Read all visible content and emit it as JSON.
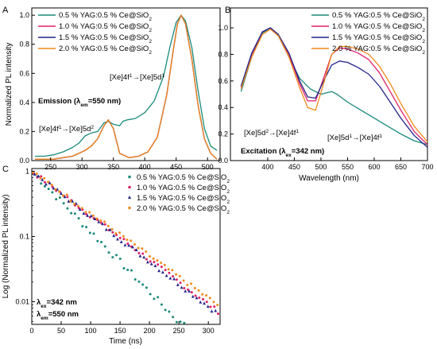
{
  "chart_data": [
    {
      "panel": "A",
      "type": "line",
      "xlim": [
        220,
        520
      ],
      "ylim": [
        0,
        1.05
      ],
      "xlabel": "",
      "ylabel": "Normalized PL intensity",
      "xticks": [
        250,
        300,
        350,
        400,
        450,
        500
      ],
      "yticks": [
        0.0,
        0.2,
        0.4,
        0.6,
        0.8,
        1.0
      ],
      "legend_position": "top-left",
      "annotations": [
        {
          "id": "ce5d1",
          "text": "[Xe]4f¹→[Xe]5d¹"
        },
        {
          "id": "emission",
          "text": "Emission (λ_em=550 nm)"
        },
        {
          "id": "ce5d2",
          "text": "[Xe]4f¹→[Xe]5d²"
        }
      ],
      "series": [
        {
          "name": "0.5 % YAG:0.5 % Ce@SiO₂",
          "color": "#1a8a7a",
          "x": [
            225,
            240,
            255,
            270,
            285,
            295,
            305,
            315,
            325,
            335,
            342,
            350,
            360,
            365,
            372,
            385,
            400,
            415,
            430,
            440,
            450,
            458,
            465,
            475,
            485,
            495,
            505,
            515
          ],
          "y": [
            0.03,
            0.03,
            0.04,
            0.06,
            0.09,
            0.12,
            0.17,
            0.19,
            0.2,
            0.26,
            0.27,
            0.25,
            0.24,
            0.27,
            0.28,
            0.29,
            0.33,
            0.41,
            0.58,
            0.78,
            0.95,
            1.0,
            0.96,
            0.78,
            0.48,
            0.22,
            0.1,
            0.07
          ]
        },
        {
          "name": "1.0 % YAG:0.5 % Ce@SiO₂",
          "color": "#e0206a",
          "x": [
            225,
            240,
            255,
            270,
            285,
            295,
            305,
            315,
            325,
            335,
            342,
            350,
            360,
            375,
            390,
            405,
            420,
            435,
            445,
            452,
            458,
            465,
            475,
            485,
            495,
            505,
            515
          ],
          "y": [
            0.01,
            0.01,
            0.01,
            0.02,
            0.03,
            0.05,
            0.07,
            0.1,
            0.15,
            0.24,
            0.28,
            0.22,
            0.05,
            0.02,
            0.03,
            0.06,
            0.16,
            0.45,
            0.75,
            0.94,
            1.0,
            0.94,
            0.7,
            0.38,
            0.15,
            0.05,
            0.01
          ]
        },
        {
          "name": "1.5 % YAG:0.5 % Ce@SiO₂",
          "color": "#24248a",
          "x": [
            225,
            240,
            255,
            270,
            285,
            295,
            305,
            315,
            325,
            335,
            342,
            350,
            360,
            375,
            390,
            405,
            420,
            435,
            445,
            452,
            458,
            465,
            475,
            485,
            495,
            505,
            515
          ],
          "y": [
            0.01,
            0.01,
            0.01,
            0.02,
            0.03,
            0.05,
            0.07,
            0.1,
            0.15,
            0.24,
            0.28,
            0.22,
            0.05,
            0.02,
            0.03,
            0.06,
            0.16,
            0.45,
            0.75,
            0.94,
            1.0,
            0.94,
            0.7,
            0.38,
            0.15,
            0.05,
            0.01
          ]
        },
        {
          "name": "2.0 % YAG:0.5 % Ce@SiO₂",
          "color": "#f08a1c",
          "x": [
            225,
            240,
            255,
            270,
            285,
            295,
            305,
            315,
            325,
            335,
            342,
            350,
            360,
            375,
            390,
            405,
            420,
            435,
            445,
            452,
            458,
            465,
            475,
            485,
            495,
            505,
            515
          ],
          "y": [
            0.01,
            0.01,
            0.01,
            0.02,
            0.03,
            0.05,
            0.07,
            0.1,
            0.15,
            0.24,
            0.28,
            0.22,
            0.05,
            0.02,
            0.03,
            0.06,
            0.16,
            0.45,
            0.75,
            0.94,
            1.0,
            0.94,
            0.7,
            0.38,
            0.15,
            0.05,
            0.01
          ]
        }
      ]
    },
    {
      "panel": "B",
      "type": "line",
      "xlim": [
        330,
        700
      ],
      "ylim": [
        0,
        1.15
      ],
      "xlabel": "Wavelength (nm)",
      "ylabel": "",
      "xticks": [
        400,
        450,
        500,
        550,
        600,
        650,
        700
      ],
      "yticks": [
        0.0,
        0.2,
        0.4,
        0.6,
        0.8,
        1.0
      ],
      "legend_position": "top-right",
      "annotations": [
        {
          "id": "ce5d2_4f",
          "text": "[Xe]5d²→[Xe]4f¹"
        },
        {
          "id": "ce5d1_4f",
          "text": "[Xe]5d¹→[Xe]4f¹"
        },
        {
          "id": "excitation",
          "text": "Excitation (λ_ex=342 nm)"
        }
      ],
      "series": [
        {
          "name": "0.5 % YAG:0.5 % Ce@SiO₂",
          "color": "#1a8a7a",
          "x": [
            350,
            370,
            390,
            405,
            420,
            440,
            460,
            480,
            500,
            520,
            530,
            550,
            575,
            600,
            625,
            650,
            675,
            700
          ],
          "y": [
            0.52,
            0.78,
            0.96,
            1.0,
            0.94,
            0.78,
            0.62,
            0.54,
            0.5,
            0.52,
            0.5,
            0.44,
            0.38,
            0.32,
            0.26,
            0.2,
            0.15,
            0.12
          ]
        },
        {
          "name": "1.0 % YAG:0.5 % Ce@SiO₂",
          "color": "#e0206a",
          "x": [
            350,
            370,
            390,
            405,
            420,
            440,
            460,
            475,
            490,
            505,
            520,
            535,
            550,
            570,
            590,
            610,
            630,
            650,
            675,
            700
          ],
          "y": [
            0.55,
            0.8,
            0.97,
            1.0,
            0.95,
            0.8,
            0.58,
            0.45,
            0.45,
            0.62,
            0.8,
            0.85,
            0.84,
            0.81,
            0.76,
            0.66,
            0.52,
            0.38,
            0.22,
            0.12
          ]
        },
        {
          "name": "1.5 % YAG:0.5 % Ce@SiO₂",
          "color": "#24248a",
          "x": [
            350,
            370,
            390,
            405,
            420,
            440,
            460,
            475,
            490,
            505,
            520,
            535,
            550,
            570,
            590,
            610,
            630,
            650,
            675,
            700
          ],
          "y": [
            0.56,
            0.81,
            0.97,
            1.0,
            0.95,
            0.81,
            0.6,
            0.48,
            0.47,
            0.6,
            0.72,
            0.75,
            0.74,
            0.7,
            0.65,
            0.56,
            0.44,
            0.32,
            0.19,
            0.1
          ]
        },
        {
          "name": "2.0 % YAG:0.5 % Ce@SiO₂",
          "color": "#f08a1c",
          "x": [
            350,
            370,
            390,
            405,
            420,
            440,
            460,
            475,
            490,
            505,
            520,
            535,
            550,
            570,
            590,
            610,
            630,
            650,
            675,
            700
          ],
          "y": [
            0.54,
            0.78,
            0.95,
            0.99,
            0.94,
            0.78,
            0.55,
            0.4,
            0.38,
            0.58,
            0.8,
            0.86,
            0.86,
            0.84,
            0.8,
            0.71,
            0.58,
            0.43,
            0.26,
            0.14
          ]
        }
      ]
    },
    {
      "panel": "C",
      "type": "scatter",
      "yscale": "log",
      "xlim": [
        0,
        320
      ],
      "ylim": [
        0.0045,
        1.1
      ],
      "xlabel": "Time (ns)",
      "ylabel": "Log (Normalized PL intensity)",
      "xticks": [
        0,
        50,
        100,
        150,
        200,
        250,
        300
      ],
      "yticks": [
        1,
        0.1,
        0.01
      ],
      "ytick_labels": [
        "1",
        "0.1",
        "0.01"
      ],
      "legend_position": "top-right",
      "annotations": [
        {
          "id": "lex",
          "text": "λ_ex=342 nm"
        },
        {
          "id": "lem",
          "text": "λ_em=550 nm"
        }
      ],
      "series": [
        {
          "name": "0.5 % YAG:0.5 % Ce@SiO₂",
          "color": "#1a8a7a",
          "tau": 47,
          "t_start": 3,
          "t_end": 262,
          "dt": 6.4,
          "y0": 1.0,
          "jitter": 0.12
        },
        {
          "name": "1.0 % YAG:0.5 % Ce@SiO₂",
          "color": "#e0206a",
          "tau": 64,
          "t_start": 3,
          "t_end": 318,
          "dt": 6.4,
          "y0": 1.0,
          "jitter": 0.08
        },
        {
          "name": "1.5 % YAG:0.5 % Ce@SiO₂",
          "color": "#24248a",
          "tau": 63,
          "t_start": 5,
          "t_end": 318,
          "dt": 6.4,
          "y0": 1.0,
          "jitter": 0.08
        },
        {
          "name": "2.0 % YAG:0.5 % Ce@SiO₂",
          "color": "#f08a1c",
          "tau": 67,
          "t_start": 2,
          "t_end": 318,
          "dt": 6.4,
          "y0": 1.0,
          "jitter": 0.08
        }
      ]
    }
  ]
}
